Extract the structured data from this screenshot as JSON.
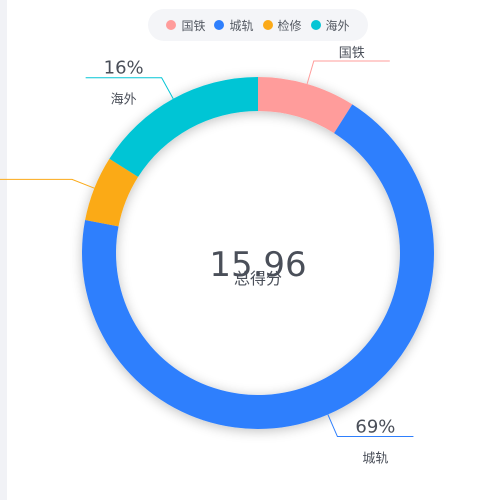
{
  "chart_data": {
    "type": "pie",
    "variant": "donut",
    "categories": [
      "国铁",
      "城轨",
      "检修",
      "海外"
    ],
    "values": [
      9,
      69,
      6,
      16
    ],
    "colors": [
      "#ff9c9b",
      "#2e7ffd",
      "#fbaa19",
      "#05c5d5"
    ],
    "labels": {
      "国铁": {
        "percent": "",
        "name": "国铁"
      },
      "城轨": {
        "percent": "69%",
        "name": "城轨"
      },
      "检修": {
        "percent": "",
        "name": ""
      },
      "海外": {
        "percent": "16%",
        "name": "海外"
      }
    },
    "center": {
      "value": "15.96",
      "caption": "总得分"
    },
    "legend": {
      "position": "top-center",
      "items": [
        "国铁",
        "城轨",
        "检修",
        "海外"
      ]
    }
  }
}
